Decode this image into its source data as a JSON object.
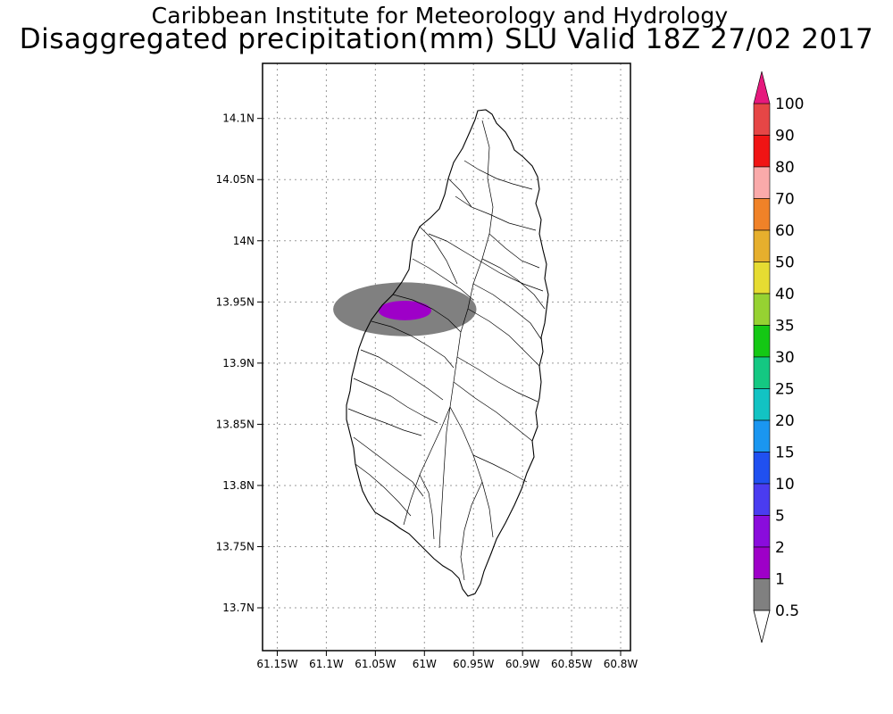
{
  "header": {
    "title": "Caribbean Institute for Meteorology and Hydrology",
    "subtitle": "Disaggregated precipitation(mm) SLU Valid 18Z 27/02 2017"
  },
  "map": {
    "lon_range": [
      -61.165,
      -60.79
    ],
    "lat_range": [
      13.665,
      14.145
    ],
    "lat_ticks": [
      {
        "value": 14.1,
        "label": "14.1N"
      },
      {
        "value": 14.05,
        "label": "14.05N"
      },
      {
        "value": 14.0,
        "label": "14N"
      },
      {
        "value": 13.95,
        "label": "13.95N"
      },
      {
        "value": 13.9,
        "label": "13.9N"
      },
      {
        "value": 13.85,
        "label": "13.85N"
      },
      {
        "value": 13.8,
        "label": "13.8N"
      },
      {
        "value": 13.75,
        "label": "13.75N"
      },
      {
        "value": 13.7,
        "label": "13.7N"
      }
    ],
    "lon_ticks": [
      {
        "value": -61.15,
        "label": "61.15W"
      },
      {
        "value": -61.1,
        "label": "61.1W"
      },
      {
        "value": -61.05,
        "label": "61.05W"
      },
      {
        "value": -61.0,
        "label": "61W"
      },
      {
        "value": -60.95,
        "label": "60.95W"
      },
      {
        "value": -60.9,
        "label": "60.9W"
      },
      {
        "value": -60.85,
        "label": "60.85W"
      },
      {
        "value": -60.8,
        "label": "60.8W"
      }
    ],
    "grid": "dotted",
    "precip_areas": [
      {
        "range": "0.5-1",
        "color": "#808080",
        "center": [
          -61.02,
          13.944
        ],
        "radius_lon": 0.073,
        "radius_lat": 0.022
      },
      {
        "range": "1-2",
        "color": "#9e00c8",
        "center": [
          -61.02,
          13.943
        ],
        "radius_lon": 0.027,
        "radius_lat": 0.008
      }
    ]
  },
  "colorbar": {
    "position": "right",
    "levels": [
      {
        "label": "0.5",
        "color": "#ffffff"
      },
      {
        "label": "1",
        "color": "#808080"
      },
      {
        "label": "2",
        "color": "#9e00c8"
      },
      {
        "label": "5",
        "color": "#8a0cdc"
      },
      {
        "label": "10",
        "color": "#4a3cf0"
      },
      {
        "label": "15",
        "color": "#2050f0"
      },
      {
        "label": "20",
        "color": "#1a96f0"
      },
      {
        "label": "25",
        "color": "#12c3c3"
      },
      {
        "label": "30",
        "color": "#14c882"
      },
      {
        "label": "35",
        "color": "#14c814"
      },
      {
        "label": "40",
        "color": "#96d232"
      },
      {
        "label": "50",
        "color": "#e6dc32"
      },
      {
        "label": "60",
        "color": "#e6af2d"
      },
      {
        "label": "70",
        "color": "#f08228"
      },
      {
        "label": "80",
        "color": "#faaaaa"
      },
      {
        "label": "90",
        "color": "#f01414"
      },
      {
        "label": "100",
        "color": "#e64646"
      }
    ],
    "over_color": "#e6197d",
    "under_color": "#ffffff"
  }
}
